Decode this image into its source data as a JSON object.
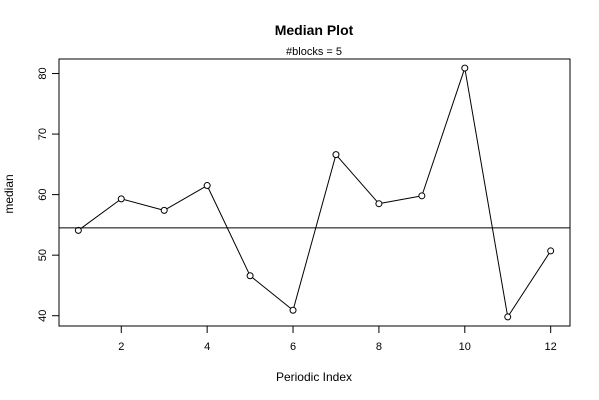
{
  "chart_data": {
    "type": "line",
    "title": "Median Plot",
    "subtitle": "#blocks =  5",
    "xlabel": "Periodic Index",
    "ylabel": "median",
    "xlim": [
      0.55,
      12.45
    ],
    "ylim": [
      38.3,
      82.4
    ],
    "xticks": [
      2,
      4,
      6,
      8,
      10,
      12
    ],
    "yticks": [
      40,
      50,
      60,
      70,
      80
    ],
    "reference_line": 54.5,
    "series": [
      {
        "x": [
          1,
          2,
          3,
          4,
          5,
          6,
          7,
          8,
          9,
          10,
          11,
          12
        ],
        "values": [
          54.1,
          59.3,
          57.4,
          61.5,
          46.6,
          40.9,
          66.6,
          58.5,
          59.8,
          80.9,
          39.8,
          50.7
        ]
      }
    ],
    "markers": "open-circle",
    "grid": false,
    "colors": {
      "line": "#000000",
      "background": "#ffffff"
    }
  }
}
